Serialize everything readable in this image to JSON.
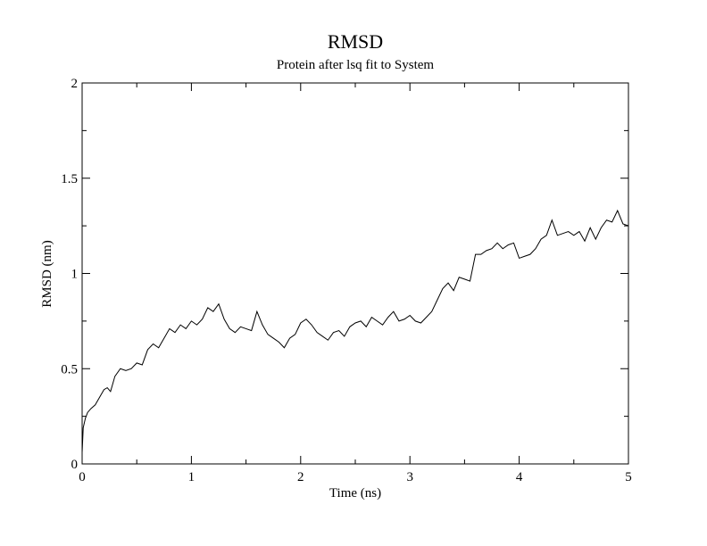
{
  "chart_data": {
    "type": "line",
    "title": "RMSD",
    "subtitle": "Protein after lsq fit to System",
    "xlabel": "Time (ns)",
    "ylabel": "RMSD (nm)",
    "xlim": [
      0,
      5
    ],
    "ylim": [
      0,
      2
    ],
    "xticks": [
      "0",
      "1",
      "2",
      "3",
      "4",
      "5"
    ],
    "yticks": [
      "0",
      "0.5",
      "1",
      "1.5",
      "2"
    ],
    "grid": false,
    "line_color": "#000000",
    "x": [
      0,
      0.01,
      0.03,
      0.05,
      0.08,
      0.12,
      0.16,
      0.2,
      0.23,
      0.26,
      0.3,
      0.35,
      0.4,
      0.45,
      0.5,
      0.55,
      0.6,
      0.65,
      0.7,
      0.75,
      0.8,
      0.85,
      0.9,
      0.95,
      1.0,
      1.05,
      1.1,
      1.15,
      1.2,
      1.25,
      1.3,
      1.35,
      1.4,
      1.45,
      1.5,
      1.55,
      1.6,
      1.65,
      1.7,
      1.75,
      1.8,
      1.85,
      1.9,
      1.95,
      2.0,
      2.05,
      2.1,
      2.15,
      2.2,
      2.25,
      2.3,
      2.35,
      2.4,
      2.45,
      2.5,
      2.55,
      2.6,
      2.65,
      2.7,
      2.75,
      2.8,
      2.85,
      2.9,
      2.95,
      3.0,
      3.05,
      3.1,
      3.15,
      3.2,
      3.25,
      3.3,
      3.35,
      3.4,
      3.45,
      3.5,
      3.55,
      3.6,
      3.65,
      3.7,
      3.75,
      3.8,
      3.85,
      3.9,
      3.95,
      4.0,
      4.05,
      4.1,
      4.15,
      4.2,
      4.25,
      4.3,
      4.35,
      4.4,
      4.45,
      4.5,
      4.55,
      4.6,
      4.65,
      4.7,
      4.75,
      4.8,
      4.85,
      4.9,
      4.95,
      5.0
    ],
    "y": [
      0.06,
      0.19,
      0.24,
      0.27,
      0.29,
      0.31,
      0.35,
      0.39,
      0.4,
      0.38,
      0.46,
      0.5,
      0.49,
      0.5,
      0.53,
      0.52,
      0.6,
      0.63,
      0.61,
      0.66,
      0.71,
      0.69,
      0.73,
      0.71,
      0.75,
      0.73,
      0.76,
      0.82,
      0.8,
      0.84,
      0.76,
      0.71,
      0.69,
      0.72,
      0.71,
      0.7,
      0.8,
      0.73,
      0.68,
      0.66,
      0.64,
      0.61,
      0.66,
      0.68,
      0.74,
      0.76,
      0.73,
      0.69,
      0.67,
      0.65,
      0.69,
      0.7,
      0.67,
      0.72,
      0.74,
      0.75,
      0.72,
      0.77,
      0.75,
      0.73,
      0.77,
      0.8,
      0.75,
      0.76,
      0.78,
      0.75,
      0.74,
      0.77,
      0.8,
      0.86,
      0.92,
      0.95,
      0.91,
      0.98,
      0.97,
      0.96,
      1.1,
      1.1,
      1.12,
      1.13,
      1.16,
      1.13,
      1.15,
      1.16,
      1.08,
      1.09,
      1.1,
      1.13,
      1.18,
      1.2,
      1.28,
      1.2,
      1.21,
      1.22,
      1.2,
      1.22,
      1.17,
      1.24,
      1.18,
      1.24,
      1.28,
      1.27,
      1.33,
      1.26,
      1.25
    ]
  }
}
